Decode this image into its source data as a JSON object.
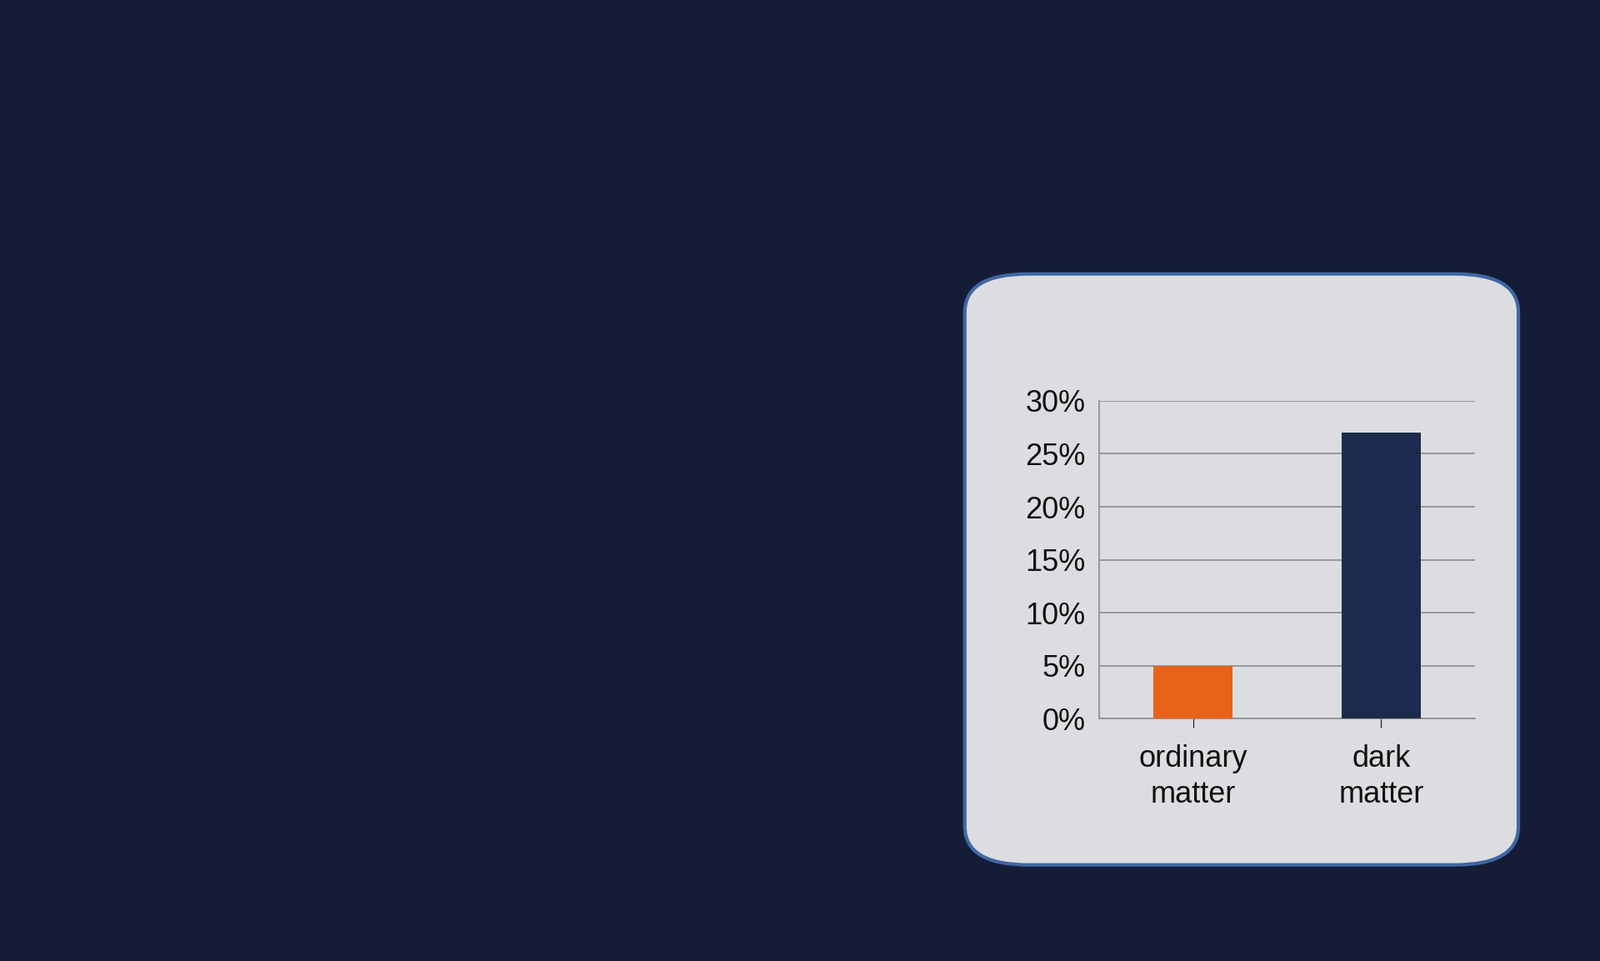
{
  "chart_data": {
    "type": "bar",
    "categories": [
      "ordinary matter",
      "dark matter"
    ],
    "values": [
      5,
      27
    ],
    "colors": [
      "#e8621a",
      "#1c2b4d"
    ],
    "ylim": [
      0,
      30
    ],
    "yticks": [
      {
        "value": 0,
        "label": "0%"
      },
      {
        "value": 5,
        "label": "5%"
      },
      {
        "value": 10,
        "label": "10%"
      },
      {
        "value": 15,
        "label": "15%"
      },
      {
        "value": 20,
        "label": "20%"
      },
      {
        "value": 25,
        "label": "25%"
      },
      {
        "value": 30,
        "label": "30%"
      }
    ],
    "grid": true
  }
}
